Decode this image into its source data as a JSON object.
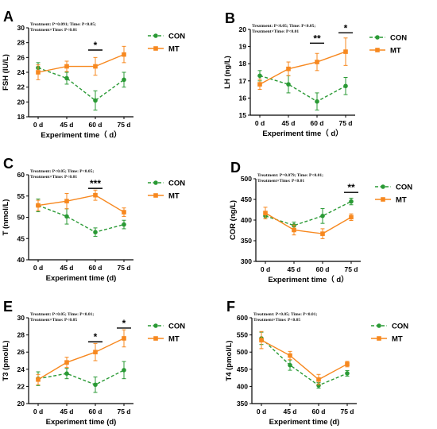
{
  "colors": {
    "con": "#2a9a35",
    "mt": "#f7881f",
    "axis": "#000000"
  },
  "chart_data": [
    {
      "panel": "A",
      "type": "line",
      "stats": [
        "Treatment: P=0.091; Time: P<0.05;",
        "Treatment×Time: P<0.01"
      ],
      "categories": [
        "0 d",
        "45 d",
        "60 d",
        "75 d"
      ],
      "xlabel": "Experiment time（ d）",
      "ylabel": "FSH (IU/L)",
      "ylim": [
        18,
        30
      ],
      "yticks": [
        "18",
        "20",
        "22",
        "24",
        "26",
        "28",
        "30"
      ],
      "series": [
        {
          "name": "CON",
          "values": [
            24.6,
            23.2,
            20.2,
            23.0
          ],
          "err": [
            0.7,
            0.8,
            1.3,
            1.0
          ]
        },
        {
          "name": "MT",
          "values": [
            24.0,
            24.8,
            24.8,
            26.4
          ],
          "err": [
            1.0,
            0.7,
            1.2,
            1.1
          ]
        }
      ],
      "sig": [
        {
          "at": "60 d",
          "label": "*",
          "y": 27.0
        }
      ]
    },
    {
      "panel": "B",
      "type": "line",
      "stats": [
        "Treatment: P<0.05; Time: P<0.05;",
        "Treatment×Time: P<0.01"
      ],
      "categories": [
        "0 d",
        "45 d",
        "60 d",
        "75 d"
      ],
      "xlabel": "Experiment time（ d）",
      "ylabel": "LH (ng/L)",
      "ylim": [
        15,
        20
      ],
      "yticks": [
        "15",
        "16",
        "17",
        "18",
        "19",
        "20"
      ],
      "series": [
        {
          "name": "CON",
          "values": [
            17.3,
            16.8,
            15.8,
            16.7
          ],
          "err": [
            0.3,
            0.5,
            0.5,
            0.5
          ]
        },
        {
          "name": "MT",
          "values": [
            16.8,
            17.7,
            18.1,
            18.7
          ],
          "err": [
            0.3,
            0.4,
            0.5,
            0.8
          ]
        }
      ],
      "sig": [
        {
          "at": "60 d",
          "label": "**",
          "y": 19.2
        },
        {
          "at": "75 d",
          "label": "*",
          "y": 19.8
        }
      ]
    },
    {
      "panel": "C",
      "type": "line",
      "stats": [
        "Treatment: P<0.05; Time: P<0.05;",
        "Treatment×Time: P<0.01"
      ],
      "categories": [
        "0 d",
        "45 d",
        "60 d",
        "75 d"
      ],
      "xlabel": "Experiment time (d)",
      "ylabel": "T (nmol/L)",
      "ylim": [
        40,
        60
      ],
      "yticks": [
        "40",
        "45",
        "50",
        "55",
        "60"
      ],
      "series": [
        {
          "name": "CON",
          "values": [
            52.8,
            50.2,
            46.5,
            48.3
          ],
          "err": [
            1.5,
            1.8,
            1.0,
            1.0
          ]
        },
        {
          "name": "MT",
          "values": [
            52.8,
            53.8,
            55.2,
            51.2
          ],
          "err": [
            1.2,
            1.8,
            1.2,
            1.0
          ]
        }
      ],
      "sig": [
        {
          "at": "60 d",
          "label": "***",
          "y": 56.8
        }
      ]
    },
    {
      "panel": "D",
      "type": "line",
      "stats": [
        "Treatment: P=0.079; Time: P<0.01;",
        "Treatment×Time: P<0.01"
      ],
      "categories": [
        "0 d",
        "45 d",
        "60 d",
        "75 d"
      ],
      "xlabel": "Experiment time（ d）",
      "ylabel": "COR (ng/L)",
      "ylim": [
        300,
        500
      ],
      "yticks": [
        "300",
        "350",
        "400",
        "450",
        "500"
      ],
      "series": [
        {
          "name": "CON",
          "values": [
            410,
            387,
            410,
            445
          ],
          "err": [
            7,
            8,
            18,
            8
          ]
        },
        {
          "name": "MT",
          "values": [
            417,
            376,
            367,
            407
          ],
          "err": [
            14,
            12,
            12,
            8
          ]
        }
      ],
      "sig": [
        {
          "at": "75 d",
          "label": "**",
          "y": 467
        }
      ]
    },
    {
      "panel": "E",
      "type": "line",
      "stats": [
        "Treatment: P<0.05; Time: P<0.01;",
        "Treatment×Time: P<0.05"
      ],
      "categories": [
        "0 d",
        "45 d",
        "60 d",
        "75 d"
      ],
      "xlabel": "Experiment time (d)",
      "ylabel": "T3 (pmol/L)",
      "ylim": [
        20,
        30
      ],
      "yticks": [
        "20",
        "22",
        "24",
        "26",
        "28",
        "30"
      ],
      "series": [
        {
          "name": "CON",
          "values": [
            22.9,
            23.5,
            22.2,
            23.9
          ],
          "err": [
            0.8,
            0.6,
            0.9,
            1.0
          ]
        },
        {
          "name": "MT",
          "values": [
            22.8,
            24.8,
            26.0,
            27.6
          ],
          "err": [
            0.6,
            0.6,
            1.0,
            1.0
          ]
        }
      ],
      "sig": [
        {
          "at": "60 d",
          "label": "*",
          "y": 27.2
        },
        {
          "at": "75 d",
          "label": "*",
          "y": 28.8
        }
      ]
    },
    {
      "panel": "F",
      "type": "line",
      "stats": [
        "Treatment: P<0.05; Time: P<0.01;",
        "Treatment×Time: P<0.05"
      ],
      "categories": [
        "0 d",
        "45 d",
        "60 d",
        "75 d"
      ],
      "xlabel": "Experiment time (d)",
      "ylabel": "T4 (pmol/L)",
      "ylim": [
        350,
        600
      ],
      "yticks": [
        "350",
        "400",
        "450",
        "500",
        "550",
        "600"
      ],
      "series": [
        {
          "name": "CON",
          "values": [
            540,
            462,
            403,
            438
          ],
          "err": [
            18,
            15,
            8,
            8
          ]
        },
        {
          "name": "MT",
          "values": [
            535,
            490,
            420,
            465
          ],
          "err": [
            25,
            12,
            15,
            8
          ]
        }
      ],
      "sig": []
    }
  ]
}
